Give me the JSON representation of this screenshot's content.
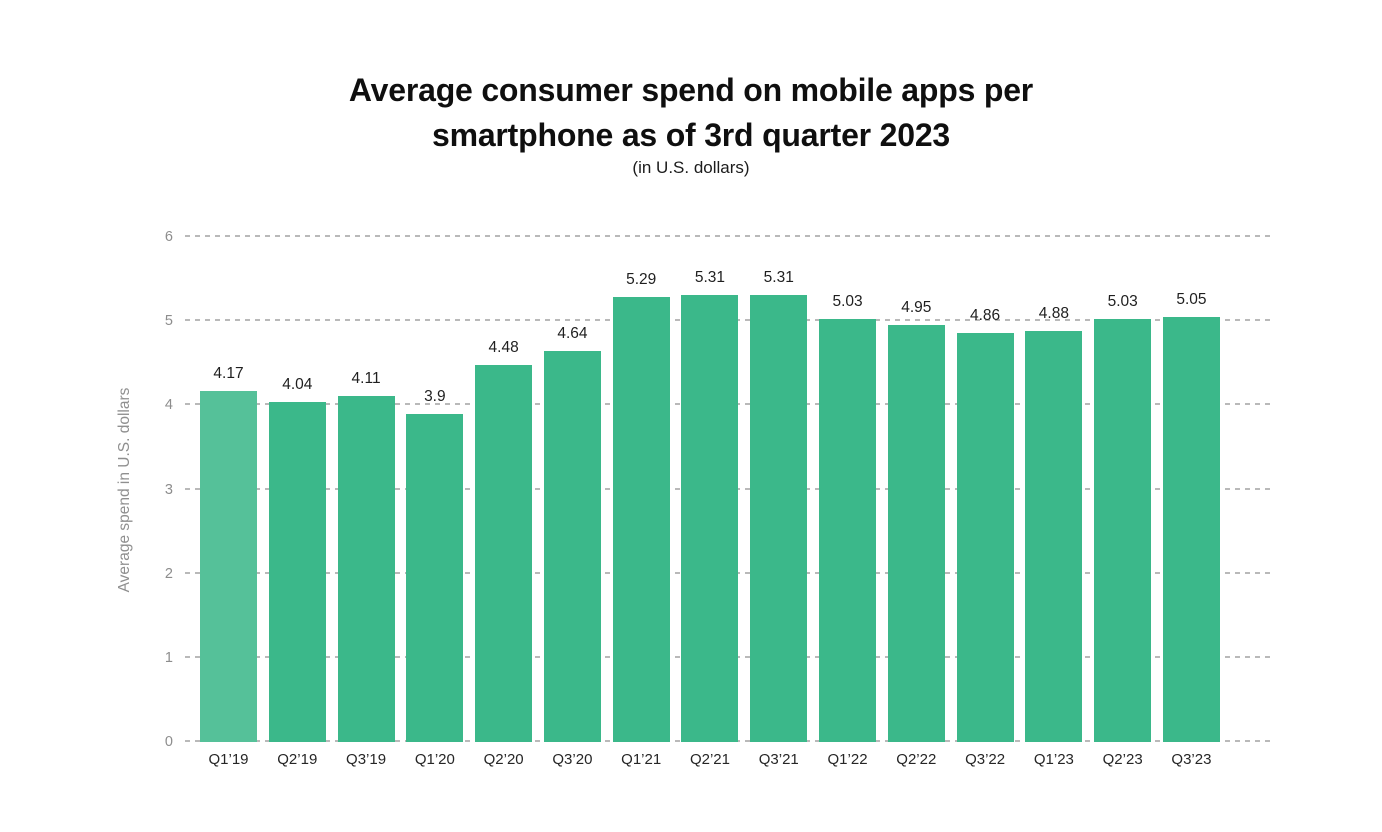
{
  "header": {
    "title": "Average consumer spend on mobile apps per smartphone as of 3rd quarter 2023",
    "subtitle": "(in U.S. dollars)"
  },
  "chart_data": {
    "type": "bar",
    "title": "Average consumer spend on mobile apps per smartphone as of 3rd quarter 2023",
    "subtitle": "(in U.S. dollars)",
    "categories": [
      "Q1’19",
      "Q2’19",
      "Q3’19",
      "Q1’20",
      "Q2’20",
      "Q3’20",
      "Q1’21",
      "Q2’21",
      "Q3’21",
      "Q1’22",
      "Q2’22",
      "Q3’22",
      "Q1’23",
      "Q2’23",
      "Q3’23"
    ],
    "values": [
      4.17,
      4.04,
      4.11,
      3.9,
      4.48,
      4.64,
      5.29,
      5.31,
      5.31,
      5.03,
      4.95,
      4.86,
      4.88,
      5.03,
      5.05
    ],
    "value_labels": [
      "4.17",
      "4.04",
      "4.11",
      "3.9",
      "4.48",
      "4.64",
      "5.29",
      "5.31",
      "5.31",
      "5.03",
      "4.95",
      "4.86",
      "4.88",
      "5.03",
      "5.05"
    ],
    "xlabel": "",
    "ylabel": "Average spend in U.S. dollars",
    "ylim": [
      0,
      6
    ],
    "yticks": [
      0,
      1,
      2,
      3,
      4,
      5,
      6
    ],
    "grid": "horizontal-dashed",
    "legend": "none",
    "colors": {
      "bar": "#3bb88a",
      "bar_first": "#55c199",
      "gridline": "#b9b9b9",
      "axis_text": "#8d8d8d",
      "value_text": "#1f1f1f"
    }
  }
}
